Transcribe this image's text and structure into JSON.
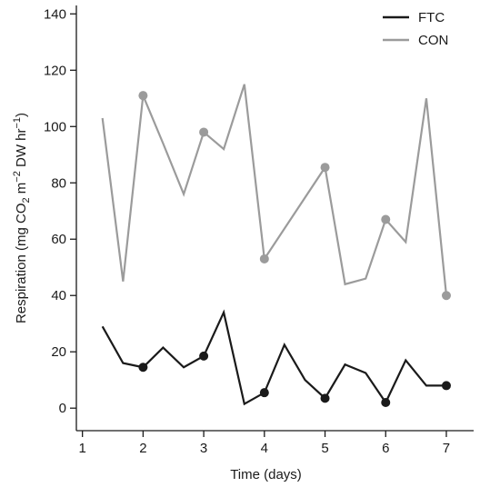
{
  "chart_data": {
    "type": "line",
    "xlabel": "Time (days)",
    "ylabel": {
      "parts": [
        "Respiration (mg CO",
        "2",
        " m",
        "−2",
        " DW hr",
        "−1",
        ")"
      ],
      "full": "Respiration (mg CO2 m−2 DW hr−1)"
    },
    "xlim": [
      0.9,
      7.45
    ],
    "ylim": [
      -8,
      143
    ],
    "x_ticks": [
      1,
      2,
      3,
      4,
      5,
      6,
      7
    ],
    "y_ticks": [
      0,
      20,
      40,
      60,
      80,
      100,
      120,
      140
    ],
    "grid": false,
    "legend_position": "top-right",
    "series": [
      {
        "name": "FTC",
        "color": "#1a1a1a",
        "x": [
          1.33,
          1.67,
          2.0,
          2.33,
          2.67,
          3.0,
          3.33,
          3.67,
          4.0,
          4.33,
          4.67,
          5.0,
          5.33,
          5.67,
          6.0,
          6.33,
          6.67,
          7.0
        ],
        "y": [
          29,
          16,
          14.5,
          21.5,
          14.5,
          18.5,
          34,
          1.5,
          5.5,
          22.5,
          10,
          3.5,
          15.5,
          12.5,
          2,
          17,
          8,
          8
        ],
        "markers_x": [
          2,
          3,
          4,
          5,
          6,
          7
        ],
        "markers_y": [
          14.5,
          18.5,
          5.5,
          3.5,
          2,
          8
        ]
      },
      {
        "name": "CON",
        "color": "#9b9b9b",
        "x": [
          1.33,
          1.67,
          2.0,
          2.33,
          2.67,
          3.0,
          3.33,
          3.67,
          4.0,
          5.0,
          5.33,
          5.67,
          6.0,
          6.33,
          6.67,
          7.0
        ],
        "y": [
          103,
          45,
          111,
          94,
          76,
          98,
          92,
          115,
          53,
          85.5,
          44,
          46,
          67,
          59,
          110,
          40
        ],
        "markers_x": [
          2,
          3,
          4,
          5,
          6,
          7
        ],
        "markers_y": [
          111,
          98,
          53,
          85.5,
          67,
          40
        ]
      }
    ]
  }
}
